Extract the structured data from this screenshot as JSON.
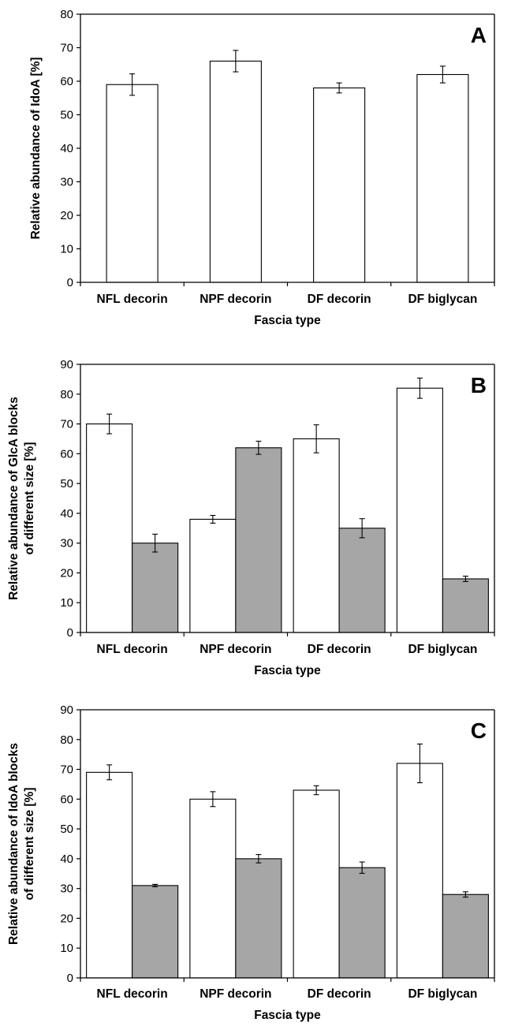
{
  "chart_data": [
    {
      "panel": "A",
      "type": "bar",
      "categories": [
        "NFL decorin",
        "NPF decorin",
        "DF decorin",
        "DF biglycan"
      ],
      "series": [
        {
          "values": [
            59,
            66,
            58,
            62
          ],
          "errors": [
            3.2,
            3.2,
            1.5,
            2.5
          ],
          "color": "#ffffff"
        }
      ],
      "xlabel": "Fascia type",
      "ylabel": [
        "Relative abundance of IdoA [%]"
      ],
      "ylim": [
        0,
        80
      ],
      "yticks": [
        0,
        10,
        20,
        30,
        40,
        50,
        60,
        70,
        80
      ],
      "grid": false
    },
    {
      "panel": "B",
      "type": "bar",
      "categories": [
        "NFL decorin",
        "NPF decorin",
        "DF decorin",
        "DF biglycan"
      ],
      "series": [
        {
          "values": [
            70,
            38,
            65,
            82
          ],
          "errors": [
            3.3,
            1.3,
            4.7,
            3.4
          ],
          "color": "#ffffff"
        },
        {
          "values": [
            30,
            62,
            35,
            18
          ],
          "errors": [
            3.0,
            2.2,
            3.2,
            0.9
          ],
          "color": "#a6a6a6"
        }
      ],
      "xlabel": "Fascia type",
      "ylabel": [
        "Relative abundance of GlcA blocks",
        "of different size [%]"
      ],
      "ylim": [
        0,
        90
      ],
      "yticks": [
        0,
        10,
        20,
        30,
        40,
        50,
        60,
        70,
        80,
        90
      ],
      "grid": false
    },
    {
      "panel": "C",
      "type": "bar",
      "categories": [
        "NFL decorin",
        "NPF decorin",
        "DF decorin",
        "DF biglycan"
      ],
      "series": [
        {
          "values": [
            69,
            60,
            63,
            72
          ],
          "errors": [
            2.5,
            2.5,
            1.5,
            6.5
          ],
          "color": "#ffffff"
        },
        {
          "values": [
            31,
            40,
            37,
            28
          ],
          "errors": [
            0.4,
            1.4,
            1.9,
            0.9
          ],
          "color": "#a6a6a6"
        }
      ],
      "xlabel": "Fascia type",
      "ylabel": [
        "Relative abundance of IdoA blocks",
        "of different size [%]"
      ],
      "ylim": [
        0,
        90
      ],
      "yticks": [
        0,
        10,
        20,
        30,
        40,
        50,
        60,
        70,
        80,
        90
      ],
      "grid": false
    }
  ]
}
